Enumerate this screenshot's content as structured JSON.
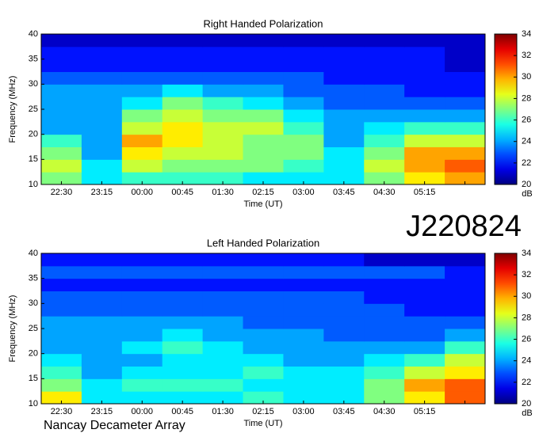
{
  "title": "J220824",
  "footer": "Nancay Decameter Array",
  "chart_data": [
    {
      "type": "heatmap",
      "title": "Right Handed Polarization",
      "xlabel": "Time (UT)",
      "ylabel": "Frequency (MHz)",
      "categories": [
        "22:30",
        "23:15",
        "00:00",
        "00:45",
        "01:30",
        "02:15",
        "03:00",
        "03:45",
        "04:30",
        "05:15",
        null
      ],
      "ybins": [
        10,
        12.5,
        15,
        17.5,
        20,
        22.5,
        25,
        27.5,
        30,
        32.5,
        35,
        37.5,
        40
      ],
      "ylim": [
        10,
        40
      ],
      "yticks": [
        10,
        15,
        20,
        25,
        30,
        35,
        40
      ],
      "colormap": "jet",
      "zlim": [
        20,
        34
      ],
      "zticks": [
        20,
        22,
        24,
        26,
        28,
        30,
        32,
        34
      ],
      "zlabel": "dB",
      "values": [
        [
          27,
          25,
          26,
          26,
          26,
          25,
          25,
          25,
          27,
          29,
          30
        ],
        [
          28,
          25,
          28,
          27,
          27,
          27,
          26,
          25,
          28,
          30,
          31
        ],
        [
          27,
          24,
          29,
          28,
          28,
          27,
          27,
          25,
          27,
          30,
          30
        ],
        [
          26,
          24,
          30,
          29,
          28,
          27,
          27,
          24,
          26,
          28,
          28
        ],
        [
          24,
          24,
          28,
          29,
          28,
          28,
          26,
          24,
          25,
          26,
          26
        ],
        [
          24,
          24,
          27,
          28,
          27,
          27,
          25,
          24,
          24,
          24,
          24
        ],
        [
          24,
          24,
          25,
          27,
          26,
          25,
          24,
          23,
          23,
          23,
          23
        ],
        [
          24,
          24,
          24,
          25,
          24,
          24,
          23,
          23,
          23,
          22,
          22
        ],
        [
          23,
          23,
          23,
          23,
          23,
          23,
          23,
          22,
          22,
          22,
          22
        ],
        [
          22,
          22,
          22,
          22,
          22,
          22,
          22,
          22,
          22,
          22,
          21
        ],
        [
          22,
          22,
          22,
          22,
          22,
          22,
          22,
          22,
          22,
          22,
          21
        ],
        [
          21,
          21,
          21,
          21,
          21,
          21,
          21,
          21,
          21,
          21,
          21
        ]
      ]
    },
    {
      "type": "heatmap",
      "title": "Left Handed Polarization",
      "xlabel": "Time (UT)",
      "ylabel": "Frequency (MHz)",
      "categories": [
        "22:30",
        "23:15",
        "00:00",
        "00:45",
        "01:30",
        "02:15",
        "03:00",
        "03:45",
        "04:30",
        "05:15",
        null
      ],
      "ybins": [
        10,
        12.5,
        15,
        17.5,
        20,
        22.5,
        25,
        27.5,
        30,
        32.5,
        35,
        37.5,
        40
      ],
      "ylim": [
        10,
        40
      ],
      "yticks": [
        10,
        15,
        20,
        25,
        30,
        35,
        40
      ],
      "colormap": "jet",
      "zlim": [
        20,
        34
      ],
      "zticks": [
        20,
        22,
        24,
        26,
        28,
        30,
        32,
        34
      ],
      "zlabel": "dB",
      "values": [
        [
          29,
          25,
          25,
          25,
          25,
          26,
          25,
          25,
          27,
          29,
          31
        ],
        [
          27,
          25,
          26,
          26,
          26,
          25,
          25,
          25,
          27,
          30,
          31
        ],
        [
          26,
          24,
          25,
          25,
          25,
          26,
          25,
          25,
          26,
          28,
          29
        ],
        [
          25,
          24,
          24,
          25,
          25,
          25,
          24,
          24,
          25,
          26,
          28
        ],
        [
          24,
          24,
          25,
          26,
          25,
          24,
          24,
          24,
          24,
          24,
          26
        ],
        [
          24,
          24,
          24,
          25,
          24,
          24,
          24,
          23,
          23,
          23,
          24
        ],
        [
          24,
          24,
          24,
          24,
          24,
          23,
          23,
          23,
          23,
          23,
          23
        ],
        [
          23,
          23,
          23,
          23,
          23,
          23,
          23,
          23,
          23,
          22,
          22
        ],
        [
          23,
          23,
          23,
          23,
          23,
          23,
          23,
          23,
          22,
          22,
          22
        ],
        [
          22,
          22,
          22,
          22,
          22,
          22,
          22,
          22,
          22,
          22,
          22
        ],
        [
          23,
          23,
          23,
          23,
          23,
          23,
          23,
          23,
          23,
          23,
          22
        ],
        [
          22,
          22,
          22,
          22,
          22,
          22,
          22,
          22,
          21,
          21,
          21
        ]
      ]
    }
  ]
}
